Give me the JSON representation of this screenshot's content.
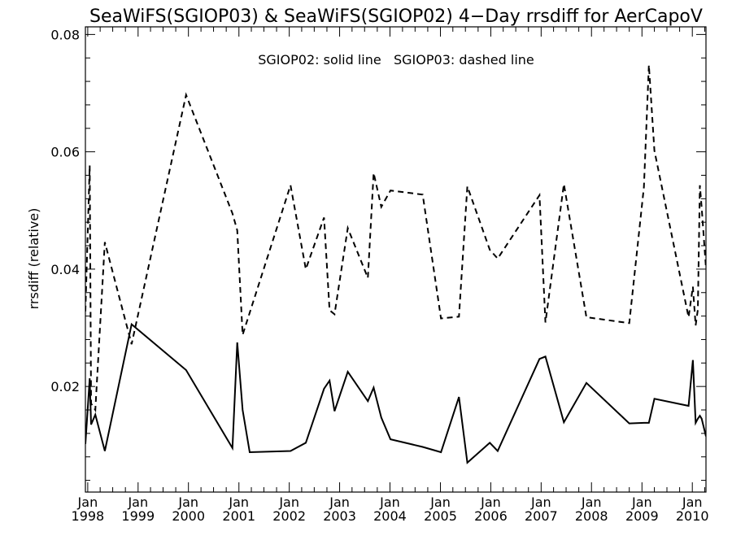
{
  "chart_data": {
    "type": "line",
    "title": "SeaWiFS(SGIOP03) & SeaWiFS(SGIOP02) 4−Day rrsdiff for AerCapoV",
    "ylabel": "rrsdiff (relative)",
    "xlabel": "",
    "legend_text": "SGIOP02: solid line   SGIOP03: dashed line",
    "legend_placement": "top-center",
    "grid": false,
    "xlim": [
      "1997-12-15",
      "2010-04-10"
    ],
    "ylim": [
      0.002,
      0.0813
    ],
    "y_ticks": [
      0.02,
      0.04,
      0.06,
      0.08
    ],
    "y_tick_labels": [
      "0.02",
      "0.04",
      "0.06",
      "0.08"
    ],
    "x_tick_dates": [
      "1998-01-01",
      "1999-01-01",
      "2000-01-01",
      "2001-01-01",
      "2002-01-01",
      "2003-01-01",
      "2004-01-01",
      "2005-01-01",
      "2006-01-01",
      "2007-01-01",
      "2008-01-01",
      "2009-01-01",
      "2010-01-01"
    ],
    "x_tick_labels": [
      [
        "Jan",
        "1998"
      ],
      [
        "Jan",
        "1999"
      ],
      [
        "Jan",
        "2000"
      ],
      [
        "Jan",
        "2001"
      ],
      [
        "Jan",
        "2002"
      ],
      [
        "Jan",
        "2003"
      ],
      [
        "Jan",
        "2004"
      ],
      [
        "Jan",
        "2005"
      ],
      [
        "Jan",
        "2006"
      ],
      [
        "Jan",
        "2007"
      ],
      [
        "Jan",
        "2008"
      ],
      [
        "Jan",
        "2009"
      ],
      [
        "Jan",
        "2010"
      ]
    ],
    "series": [
      {
        "name": "SGIOP02",
        "style": "solid",
        "color": "#000000",
        "x": [
          "1997-12-15",
          "1998-01-15",
          "1998-01-25",
          "1998-02-25",
          "1998-05-05",
          "1998-11-15",
          "1999-12-15",
          "2000-11-15",
          "2000-12-20",
          "2001-01-28",
          "2001-03-20",
          "2002-01-10",
          "2002-05-01",
          "2002-09-10",
          "2002-10-20",
          "2002-11-25",
          "2003-03-01",
          "2003-07-25",
          "2003-09-05",
          "2003-10-30",
          "2004-01-05",
          "2004-08-25",
          "2005-01-05",
          "2005-05-15",
          "2005-07-15",
          "2005-12-25",
          "2006-02-20",
          "2006-12-20",
          "2007-02-01",
          "2007-06-15",
          "2007-11-25",
          "2008-10-01",
          "2009-01-15",
          "2009-02-20",
          "2009-04-01",
          "2009-12-05",
          "2010-01-05",
          "2010-01-25",
          "2010-02-10",
          "2010-02-25",
          "2010-03-10",
          "2010-04-10"
        ],
        "y": [
          0.0102,
          0.0214,
          0.0135,
          0.0152,
          0.009,
          0.0306,
          0.0228,
          0.0095,
          0.0275,
          0.016,
          0.0088,
          0.009,
          0.0104,
          0.0196,
          0.021,
          0.0158,
          0.0225,
          0.0175,
          0.0198,
          0.0147,
          0.011,
          0.0097,
          0.0088,
          0.0182,
          0.007,
          0.0104,
          0.009,
          0.0247,
          0.0251,
          0.0139,
          0.0206,
          0.0137,
          0.0138,
          0.0138,
          0.0179,
          0.0167,
          0.0245,
          0.0138,
          0.0145,
          0.015,
          0.0145,
          0.0115
        ]
      },
      {
        "name": "SGIOP03",
        "style": "dashed",
        "color": "#000000",
        "x": [
          "1997-12-15",
          "1998-01-15",
          "1998-01-25",
          "1998-02-25",
          "1998-05-05",
          "1998-11-15",
          "1999-12-15",
          "2000-11-15",
          "2000-12-20",
          "2001-01-28",
          "2002-01-10",
          "2002-05-01",
          "2002-09-10",
          "2002-10-20",
          "2002-11-25",
          "2003-03-01",
          "2003-07-25",
          "2003-09-05",
          "2003-10-30",
          "2004-01-05",
          "2004-08-25",
          "2005-01-05",
          "2005-05-15",
          "2005-07-15",
          "2005-12-25",
          "2006-02-20",
          "2006-12-20",
          "2007-02-01",
          "2007-06-15",
          "2007-11-25",
          "2008-10-01",
          "2009-01-15",
          "2009-02-20",
          "2009-04-01",
          "2009-12-05",
          "2010-01-05",
          "2010-01-25",
          "2010-02-10",
          "2010-02-25",
          "2010-03-10",
          "2010-04-10"
        ],
        "y": [
          0.0328,
          0.0577,
          0.0171,
          0.016,
          0.0446,
          0.0272,
          0.0697,
          0.0495,
          0.0466,
          0.0288,
          0.0543,
          0.04,
          0.0488,
          0.033,
          0.0323,
          0.047,
          0.0385,
          0.0564,
          0.0506,
          0.0534,
          0.0527,
          0.0316,
          0.0319,
          0.0541,
          0.0433,
          0.0418,
          0.0526,
          0.0309,
          0.0545,
          0.0318,
          0.0308,
          0.054,
          0.0748,
          0.0602,
          0.0318,
          0.037,
          0.0304,
          0.0331,
          0.0543,
          0.0505,
          0.0402
        ]
      }
    ]
  }
}
